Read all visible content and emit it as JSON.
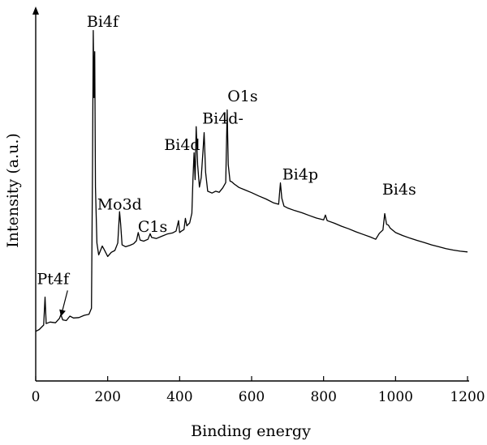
{
  "chart_data": {
    "type": "line",
    "xlabel": "Binding energy",
    "ylabel": "Intensity (a.u.)",
    "xlim": [
      0,
      1200
    ],
    "ylim": [
      0,
      100
    ],
    "x_ticks": [
      0,
      200,
      400,
      600,
      800,
      1000,
      1200
    ],
    "y_ticks_labeled": false,
    "grid": false,
    "series": [
      {
        "values": [
          [
            0,
            13.3
          ],
          [
            10,
            13.8
          ],
          [
            22,
            15.0
          ],
          [
            26,
            22.5
          ],
          [
            29,
            15.4
          ],
          [
            40,
            15.8
          ],
          [
            55,
            15.6
          ],
          [
            66,
            16.8
          ],
          [
            70,
            17.8
          ],
          [
            75,
            16.4
          ],
          [
            85,
            16.2
          ],
          [
            95,
            17.4
          ],
          [
            105,
            16.9
          ],
          [
            120,
            17.0
          ],
          [
            135,
            17.6
          ],
          [
            148,
            17.9
          ],
          [
            155,
            19.5
          ],
          [
            158,
            58.0
          ],
          [
            160,
            94.0
          ],
          [
            162,
            76.0
          ],
          [
            164,
            88.3
          ],
          [
            166,
            52.0
          ],
          [
            170,
            37.0
          ],
          [
            175,
            33.8
          ],
          [
            180,
            35.0
          ],
          [
            185,
            36.2
          ],
          [
            190,
            35.3
          ],
          [
            200,
            33.4
          ],
          [
            210,
            34.5
          ],
          [
            220,
            35.0
          ],
          [
            228,
            37.0
          ],
          [
            233,
            45.4
          ],
          [
            236,
            42.2
          ],
          [
            240,
            36.5
          ],
          [
            250,
            36.0
          ],
          [
            262,
            36.4
          ],
          [
            272,
            36.8
          ],
          [
            280,
            37.6
          ],
          [
            285,
            39.8
          ],
          [
            290,
            37.8
          ],
          [
            300,
            37.5
          ],
          [
            312,
            38.0
          ],
          [
            318,
            39.5
          ],
          [
            322,
            38.5
          ],
          [
            335,
            38.2
          ],
          [
            350,
            38.8
          ],
          [
            365,
            39.4
          ],
          [
            380,
            39.7
          ],
          [
            390,
            40.2
          ],
          [
            397,
            43.0
          ],
          [
            400,
            39.8
          ],
          [
            405,
            40.2
          ],
          [
            412,
            40.6
          ],
          [
            416,
            43.6
          ],
          [
            420,
            41.6
          ],
          [
            428,
            42.4
          ],
          [
            434,
            45.0
          ],
          [
            437,
            54.0
          ],
          [
            440,
            61.2
          ],
          [
            443,
            54.0
          ],
          [
            446,
            68.2
          ],
          [
            450,
            58.0
          ],
          [
            455,
            52.0
          ],
          [
            460,
            54.5
          ],
          [
            465,
            62.0
          ],
          [
            468,
            66.6
          ],
          [
            472,
            56.0
          ],
          [
            478,
            50.9
          ],
          [
            490,
            50.4
          ],
          [
            500,
            50.9
          ],
          [
            510,
            50.6
          ],
          [
            520,
            51.8
          ],
          [
            528,
            53.2
          ],
          [
            532,
            72.7
          ],
          [
            535,
            58.0
          ],
          [
            540,
            53.6
          ],
          [
            545,
            53.4
          ],
          [
            552,
            52.8
          ],
          [
            565,
            51.9
          ],
          [
            580,
            51.3
          ],
          [
            600,
            50.5
          ],
          [
            620,
            49.6
          ],
          [
            640,
            48.8
          ],
          [
            660,
            47.8
          ],
          [
            675,
            47.4
          ],
          [
            680,
            53.1
          ],
          [
            684,
            49.0
          ],
          [
            690,
            46.9
          ],
          [
            700,
            46.4
          ],
          [
            720,
            45.7
          ],
          [
            740,
            45.1
          ],
          [
            760,
            44.4
          ],
          [
            780,
            43.7
          ],
          [
            800,
            43.2
          ],
          [
            805,
            44.5
          ],
          [
            810,
            43.0
          ],
          [
            830,
            42.3
          ],
          [
            850,
            41.5
          ],
          [
            870,
            40.8
          ],
          [
            890,
            40.0
          ],
          [
            910,
            39.3
          ],
          [
            930,
            38.6
          ],
          [
            945,
            38.0
          ],
          [
            955,
            39.6
          ],
          [
            965,
            40.5
          ],
          [
            970,
            44.9
          ],
          [
            975,
            42.0
          ],
          [
            980,
            41.8
          ],
          [
            985,
            41.0
          ],
          [
            1000,
            39.8
          ],
          [
            1020,
            39.0
          ],
          [
            1040,
            38.3
          ],
          [
            1060,
            37.7
          ],
          [
            1080,
            37.1
          ],
          [
            1100,
            36.5
          ],
          [
            1120,
            36.0
          ],
          [
            1140,
            35.5
          ],
          [
            1160,
            35.1
          ],
          [
            1180,
            34.8
          ],
          [
            1200,
            34.6
          ]
        ]
      }
    ],
    "annotations": [
      {
        "text": "Bi4f",
        "x": 186,
        "y": 95
      },
      {
        "text": "O1s",
        "x": 575,
        "y": 75
      },
      {
        "text": "Bi4d-",
        "x": 520,
        "y": 69
      },
      {
        "text": "Bi4d",
        "x": 407,
        "y": 62
      },
      {
        "text": "Bi4p",
        "x": 735,
        "y": 54
      },
      {
        "text": "Bi4s",
        "x": 1010,
        "y": 50
      },
      {
        "text": "Mo3d",
        "x": 233,
        "y": 46
      },
      {
        "text": "C1s",
        "x": 325,
        "y": 40
      },
      {
        "text": "Pt4f",
        "x": 48,
        "y": 26,
        "arrow_to": {
          "x": 70,
          "y": 17.3
        }
      }
    ]
  }
}
